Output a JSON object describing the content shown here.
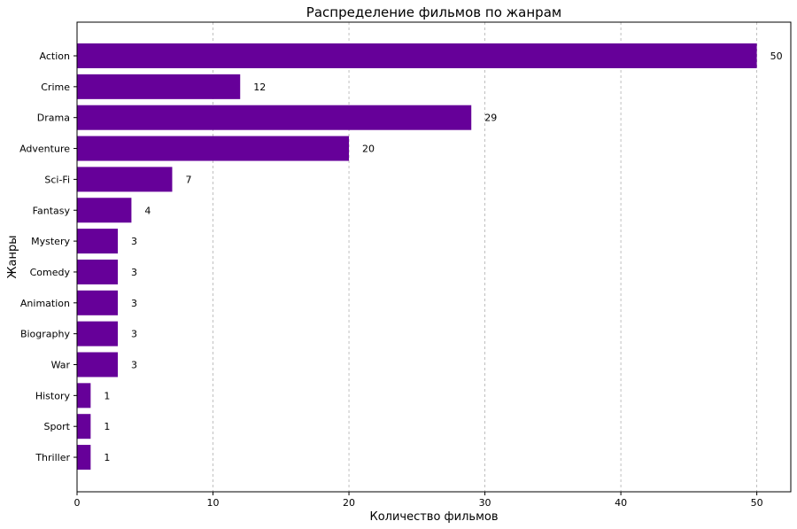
{
  "chart_data": {
    "type": "bar",
    "orientation": "horizontal",
    "title": "Распределение фильмов по жанрам",
    "xlabel": "Количество фильмов",
    "ylabel": "Жанры",
    "categories": [
      "Action",
      "Crime",
      "Drama",
      "Adventure",
      "Sci-Fi",
      "Fantasy",
      "Mystery",
      "Comedy",
      "Animation",
      "Biography",
      "War",
      "History",
      "Sport",
      "Thriller"
    ],
    "values": [
      50,
      12,
      29,
      20,
      7,
      4,
      3,
      3,
      3,
      3,
      3,
      1,
      1,
      1
    ],
    "xlim": [
      0,
      52.5
    ],
    "xticks": [
      0,
      10,
      20,
      30,
      40,
      50
    ],
    "grid": "x-dashed",
    "bar_color": "#660099",
    "data_labels": true
  }
}
